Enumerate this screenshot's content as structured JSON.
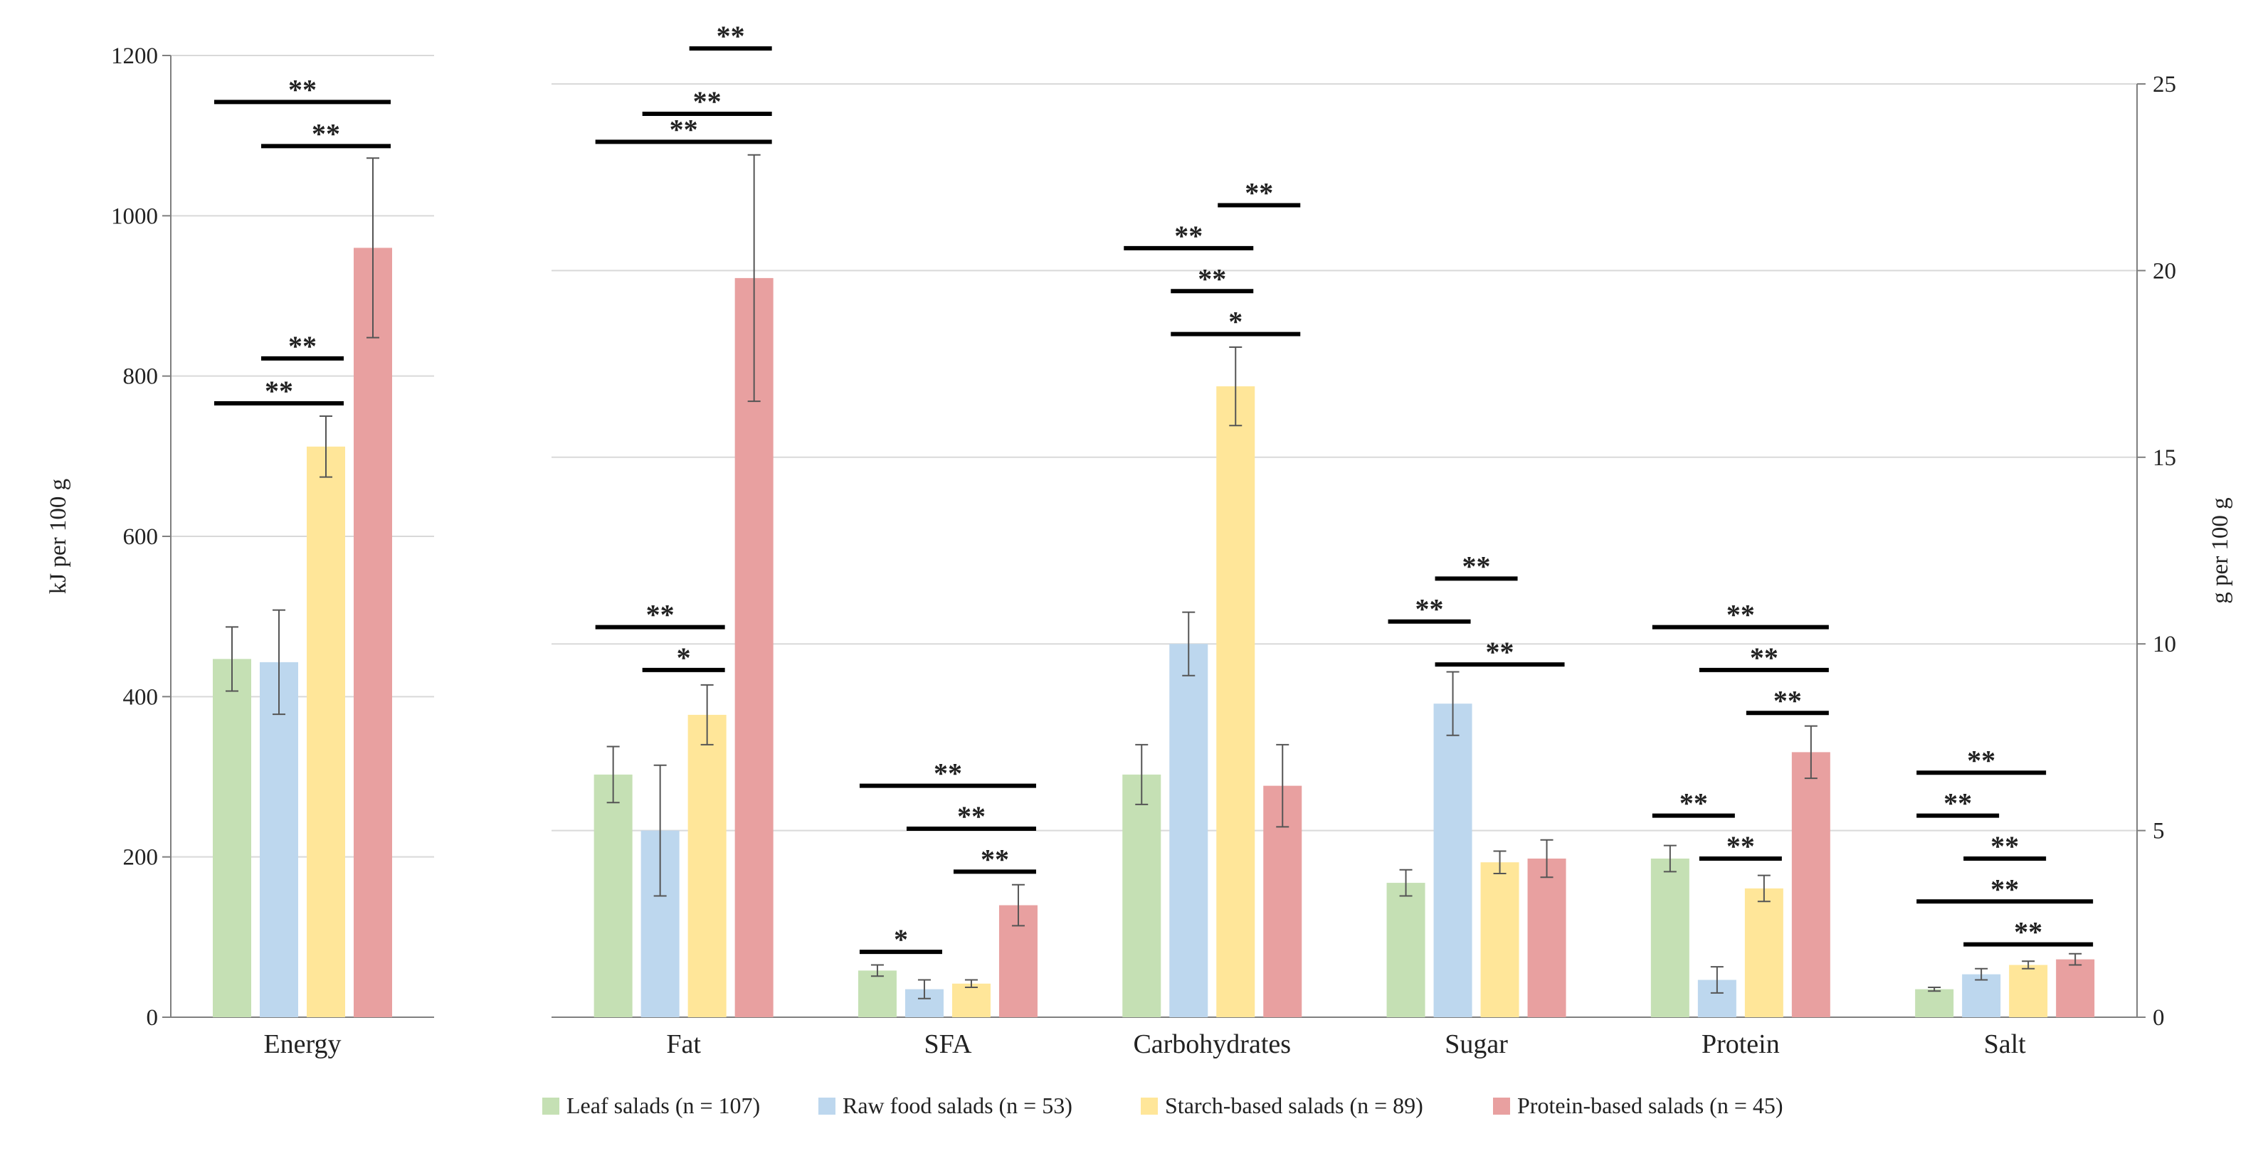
{
  "chart_data": [
    {
      "type": "bar",
      "panel": "left",
      "categories": [
        "Energy"
      ],
      "ylabel": "kJ per 100 g",
      "ylim": [
        0,
        1200
      ],
      "yticks": [
        0,
        200,
        400,
        600,
        800,
        1000,
        1200
      ],
      "grid": true,
      "series": [
        {
          "name": "Leaf salads (n = 107)",
          "values": [
            447
          ],
          "err": [
            40
          ]
        },
        {
          "name": "Raw food salads (n = 53)",
          "values": [
            443
          ],
          "err": [
            65
          ]
        },
        {
          "name": "Starch-based salads (n = 89)",
          "values": [
            712
          ],
          "err": [
            38
          ]
        },
        {
          "name": "Protein-based salads (n = 45)",
          "values": [
            960
          ],
          "err": [
            112
          ]
        }
      ],
      "significance": [
        {
          "category": 0,
          "from": 0,
          "to": 3,
          "label": "**",
          "level": 1142
        },
        {
          "category": 0,
          "from": 1,
          "to": 3,
          "label": "**",
          "level": 1087
        },
        {
          "category": 0,
          "from": 1,
          "to": 2,
          "label": "**",
          "level": 822
        },
        {
          "category": 0,
          "from": 0,
          "to": 2,
          "label": "**",
          "level": 766
        }
      ]
    },
    {
      "type": "bar",
      "panel": "right",
      "categories": [
        "Fat",
        "SFA",
        "Carbohydrates",
        "Sugar",
        "Protein",
        "Salt"
      ],
      "ylabel": "g per 100 g",
      "ylim": [
        0,
        25
      ],
      "yticks": [
        0,
        5,
        10,
        15,
        20,
        25
      ],
      "grid": true,
      "series": [
        {
          "name": "Leaf salads (n = 107)",
          "values": [
            6.5,
            1.25,
            6.5,
            3.6,
            4.25,
            0.75
          ],
          "err": [
            0.75,
            0.15,
            0.8,
            0.35,
            0.35,
            0.05
          ]
        },
        {
          "name": "Raw food salads (n = 53)",
          "values": [
            5.0,
            0.75,
            10.0,
            8.4,
            1.0,
            1.15
          ],
          "err": [
            1.75,
            0.25,
            0.85,
            0.85,
            0.35,
            0.15
          ]
        },
        {
          "name": "Starch-based salads (n = 89)",
          "values": [
            8.1,
            0.9,
            16.9,
            4.15,
            3.45,
            1.4
          ],
          "err": [
            0.8,
            0.1,
            1.05,
            0.3,
            0.35,
            0.1
          ]
        },
        {
          "name": "Protein-based salads (n = 45)",
          "values": [
            19.8,
            3.0,
            6.2,
            4.25,
            7.1,
            1.55
          ],
          "err": [
            3.3,
            0.55,
            1.1,
            0.5,
            0.7,
            0.15
          ]
        }
      ],
      "significance": [
        {
          "category": 0,
          "from": 2,
          "to": 3,
          "label": "**",
          "level": 25.95
        },
        {
          "category": 0,
          "from": 1,
          "to": 3,
          "label": "**",
          "level": 24.2
        },
        {
          "category": 0,
          "from": 0,
          "to": 3,
          "label": "**",
          "level": 23.45
        },
        {
          "category": 0,
          "from": 0,
          "to": 2,
          "label": "**",
          "level": 10.45
        },
        {
          "category": 0,
          "from": 1,
          "to": 2,
          "label": "*",
          "level": 9.3
        },
        {
          "category": 1,
          "from": 0,
          "to": 3,
          "label": "**",
          "level": 6.2
        },
        {
          "category": 1,
          "from": 1,
          "to": 3,
          "label": "**",
          "level": 5.05
        },
        {
          "category": 1,
          "from": 2,
          "to": 3,
          "label": "**",
          "level": 3.9
        },
        {
          "category": 1,
          "from": 0,
          "to": 1,
          "label": "*",
          "level": 1.75
        },
        {
          "category": 2,
          "from": 2,
          "to": 3,
          "label": "**",
          "level": 21.75
        },
        {
          "category": 2,
          "from": 0,
          "to": 2,
          "label": "**",
          "level": 20.6
        },
        {
          "category": 2,
          "from": 1,
          "to": 2,
          "label": "**",
          "level": 19.45
        },
        {
          "category": 2,
          "from": 1,
          "to": 3,
          "label": "*",
          "level": 18.3
        },
        {
          "category": 3,
          "from": 1,
          "to": 2,
          "label": "**",
          "level": 11.75
        },
        {
          "category": 3,
          "from": 0,
          "to": 1,
          "label": "**",
          "level": 10.6
        },
        {
          "category": 3,
          "from": 1,
          "to": 3,
          "label": "**",
          "level": 9.45
        },
        {
          "category": 4,
          "from": 0,
          "to": 3,
          "label": "**",
          "level": 10.45
        },
        {
          "category": 4,
          "from": 1,
          "to": 3,
          "label": "**",
          "level": 9.3
        },
        {
          "category": 4,
          "from": 2,
          "to": 3,
          "label": "**",
          "level": 8.15
        },
        {
          "category": 4,
          "from": 0,
          "to": 1,
          "label": "**",
          "level": 5.4
        },
        {
          "category": 4,
          "from": 1,
          "to": 2,
          "label": "**",
          "level": 4.25
        },
        {
          "category": 5,
          "from": 0,
          "to": 2,
          "label": "**",
          "level": 6.55
        },
        {
          "category": 5,
          "from": 0,
          "to": 1,
          "label": "**",
          "level": 5.4
        },
        {
          "category": 5,
          "from": 1,
          "to": 2,
          "label": "**",
          "level": 4.25
        },
        {
          "category": 5,
          "from": 0,
          "to": 3,
          "label": "**",
          "level": 3.1
        },
        {
          "category": 5,
          "from": 1,
          "to": 3,
          "label": "**",
          "level": 1.95
        }
      ]
    }
  ],
  "legend": {
    "placement": "bottom",
    "items": [
      {
        "label": "Leaf salads (n = 107)",
        "color": "#c5e0b4"
      },
      {
        "label": "Raw food salads (n = 53)",
        "color": "#bdd7ee"
      },
      {
        "label": "Starch-based salads (n = 89)",
        "color": "#ffe699"
      },
      {
        "label": "Protein-based salads (n = 45)",
        "color": "#e8a0a0"
      }
    ]
  },
  "colors": {
    "series": [
      "#c5e0b4",
      "#bdd7ee",
      "#ffe699",
      "#e8a0a0"
    ],
    "grid": "#d9d9d9",
    "axis": "#7f7f7f",
    "errorbar": "#555555",
    "significance": "#000000"
  }
}
